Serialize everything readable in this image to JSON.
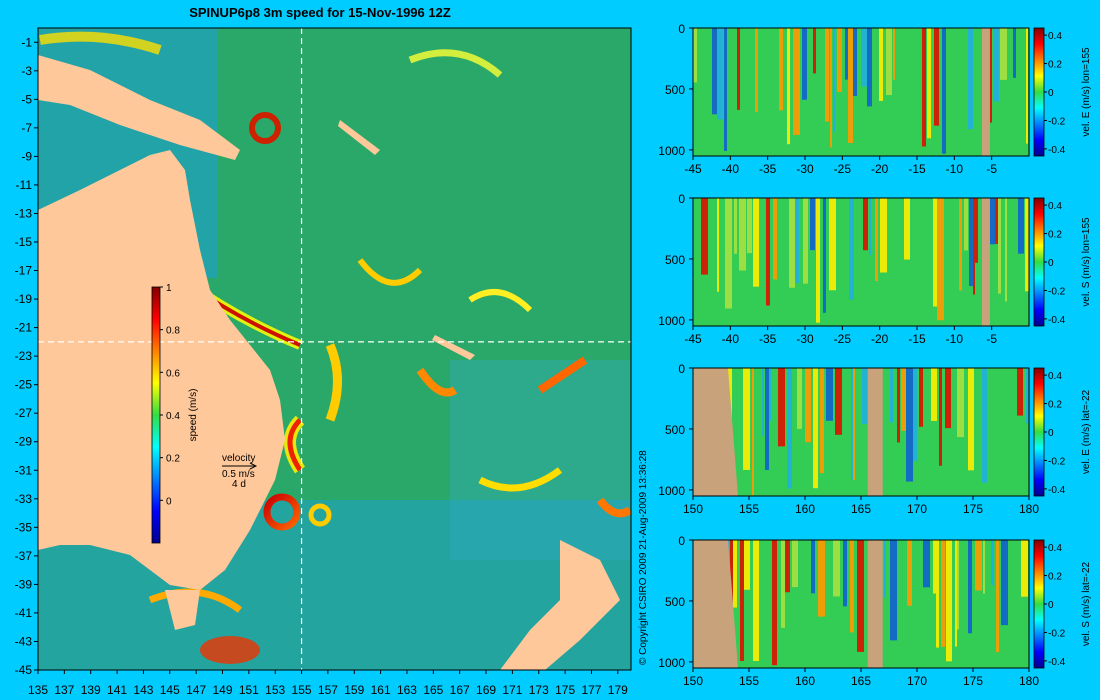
{
  "title": "SPINUP6p8 3m speed for 15-Nov-1996 12Z",
  "copyright": "© Copyright CSIRO 2009   21-Aug-2009 13:36:28",
  "map": {
    "x_ticks": [
      135,
      137,
      139,
      141,
      143,
      145,
      147,
      149,
      151,
      153,
      155,
      157,
      159,
      161,
      163,
      165,
      167,
      169,
      171,
      173,
      175,
      177,
      179
    ],
    "y_ticks": [
      -1,
      -3,
      -5,
      -7,
      -9,
      -11,
      -13,
      -15,
      -17,
      -19,
      -21,
      -23,
      -25,
      -27,
      -29,
      -31,
      -33,
      -35,
      -37,
      -39,
      -41,
      -43,
      -45
    ],
    "xlim": [
      135,
      180
    ],
    "ylim": [
      -45,
      0
    ],
    "section_lon": 155,
    "section_lat": -22,
    "colorbar": {
      "label": "speed (m/s)",
      "ticks": [
        "1",
        "0.8",
        "0.6",
        "0.4",
        "0.2",
        "0"
      ],
      "range": [
        -0.2,
        1
      ]
    },
    "velocity_key": {
      "title": "velocity",
      "speed": "0.5 m/s",
      "time": "4 d"
    }
  },
  "chart_data": [
    {
      "type": "heatmap",
      "title": "vel. E (m/s) lon=155",
      "x_ticks": [
        "-45",
        "-40",
        "-35",
        "-30",
        "-25",
        "-20",
        "-15",
        "-10",
        "-5"
      ],
      "y_ticks": [
        "0",
        "500",
        "1000"
      ],
      "xlim": [
        -45,
        0
      ],
      "ylim": [
        1050,
        0
      ],
      "colorbar_ticks": [
        "0.4",
        "0.2",
        "0",
        "-0.2",
        "-0.4"
      ],
      "crange": [
        -0.45,
        0.45
      ]
    },
    {
      "type": "heatmap",
      "title": "vel. S (m/s) lon=155",
      "x_ticks": [
        "-45",
        "-40",
        "-35",
        "-30",
        "-25",
        "-20",
        "-15",
        "-10",
        "-5"
      ],
      "y_ticks": [
        "0",
        "500",
        "1000"
      ],
      "xlim": [
        -45,
        0
      ],
      "ylim": [
        1050,
        0
      ],
      "colorbar_ticks": [
        "0.4",
        "0.2",
        "0",
        "-0.2",
        "-0.4"
      ],
      "crange": [
        -0.45,
        0.45
      ]
    },
    {
      "type": "heatmap",
      "title": "vel. E (m/s) lat=-22",
      "x_ticks": [
        "150",
        "155",
        "160",
        "165",
        "170",
        "175",
        "180"
      ],
      "y_ticks": [
        "0",
        "500",
        "1000"
      ],
      "xlim": [
        150,
        180
      ],
      "ylim": [
        1050,
        0
      ],
      "colorbar_ticks": [
        "0.4",
        "0.2",
        "0",
        "-0.2",
        "-0.4"
      ],
      "crange": [
        -0.45,
        0.45
      ]
    },
    {
      "type": "heatmap",
      "title": "vel. S (m/s) lat=-22",
      "x_ticks": [
        "150",
        "155",
        "160",
        "165",
        "170",
        "175",
        "180"
      ],
      "y_ticks": [
        "0",
        "500",
        "1000"
      ],
      "xlim": [
        150,
        180
      ],
      "ylim": [
        1050,
        0
      ],
      "colorbar_ticks": [
        "0.4",
        "0.2",
        "0",
        "-0.2",
        "-0.4"
      ],
      "crange": [
        -0.45,
        0.45
      ]
    }
  ]
}
